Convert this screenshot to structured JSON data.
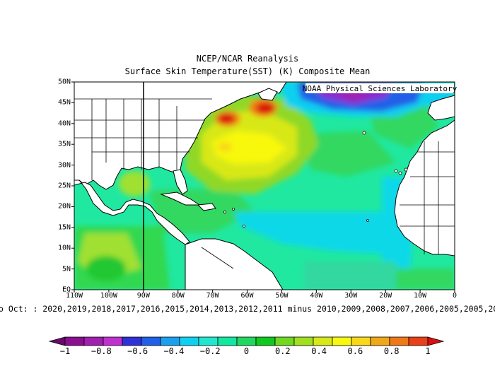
{
  "title": {
    "line1": "NCEP/NCAR Reanalysis",
    "line2": "Surface Skin Temperature(SST) (K) Composite Mean"
  },
  "credit": "NOAA Physical Sciences Laboratory",
  "caption": "o Oct: : 2020,2019,2018,2017,2016,2015,2014,2013,2012,2011 minus 2010,2009,2008,2007,2006,2005,2005,20",
  "map": {
    "x_ticks": [
      "110W",
      "100W",
      "90W",
      "80W",
      "70W",
      "60W",
      "50W",
      "40W",
      "30W",
      "20W",
      "10W",
      "0"
    ],
    "y_ticks": [
      "50N",
      "45N",
      "40N",
      "35N",
      "30N",
      "25N",
      "20N",
      "15N",
      "10N",
      "5N",
      "EQ"
    ],
    "lon_range": [
      -110,
      0
    ],
    "lat_range": [
      0,
      50
    ],
    "reference_meridian": "90W"
  },
  "colorbar": {
    "labels": [
      "−1",
      "−0.8",
      "−0.6",
      "−0.4",
      "−0.2",
      "0",
      "0.2",
      "0.4",
      "0.6",
      "0.8",
      "1"
    ],
    "colors": [
      "#6a0a6a",
      "#8a1090",
      "#a020b0",
      "#c030d0",
      "#3030d8",
      "#2060e8",
      "#1aa0f0",
      "#10d0f0",
      "#20e8d0",
      "#10e8a0",
      "#20d860",
      "#10c820",
      "#70d820",
      "#a0e020",
      "#d8e818",
      "#f8f810",
      "#f8d818",
      "#f0a818",
      "#f07818",
      "#e84018",
      "#d81010"
    ]
  }
}
